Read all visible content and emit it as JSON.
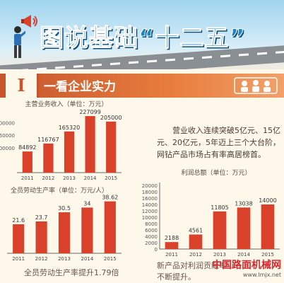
{
  "banner": {
    "title": "图说基础“十二五”"
  },
  "section": {
    "number": "I",
    "title": "一看企业实力"
  },
  "intro_text": "营业收入连续突破5亿元、15亿元、20亿元，5年迈上三个大台阶，网钻产品市场占有率高居榜首。",
  "bottom_left_text": "全员劳动生产率提升1.79倍",
  "bottom_right_text": "新产品对利润贡献率不断提升。",
  "watermark": {
    "main": "中国路面机械网",
    "sub": "www.lmjx.net"
  },
  "colors": {
    "bar": "#d9412a",
    "accent": "#e77d3d",
    "axis": "#666666"
  },
  "chart_data": [
    {
      "type": "bar",
      "title": "主营业务收入（单位：万元）",
      "categories": [
        "2011",
        "2012",
        "2013",
        "2014",
        "2015"
      ],
      "values": [
        84892,
        116767,
        165320,
        227099,
        205000
      ],
      "data_labels": [
        "84892",
        "116767",
        "165320",
        "227099",
        "205000"
      ],
      "ylim": [
        0,
        250000
      ],
      "y_ticks": [
        "200000",
        "150000",
        "100000"
      ],
      "grid": false
    },
    {
      "type": "bar",
      "title": "全员劳动生产率（单位：万元/人）",
      "categories": [
        "2011",
        "2012",
        "2013",
        "2014",
        "2015"
      ],
      "values": [
        21.6,
        23.7,
        30.5,
        34,
        38.62
      ],
      "data_labels": [
        "21.6",
        "23.7",
        "30.5",
        "34",
        "38.62"
      ],
      "ylim": [
        0,
        40
      ],
      "grid": false
    },
    {
      "type": "bar",
      "title": "利润总额（单位：万元）",
      "categories": [
        "2011",
        "2012",
        "2013",
        "2014",
        "2015"
      ],
      "values": [
        2188,
        4561,
        11805,
        13038,
        14000
      ],
      "data_labels": [
        "2188",
        "4561",
        "11805",
        "13038",
        "14000"
      ],
      "ylim": [
        0,
        20000
      ],
      "y_ticks": [
        "20000",
        "18000",
        "16000",
        "14000",
        "12000",
        "10000",
        "8000",
        "6000",
        "4000",
        "2000",
        "0"
      ],
      "grid": false
    }
  ]
}
